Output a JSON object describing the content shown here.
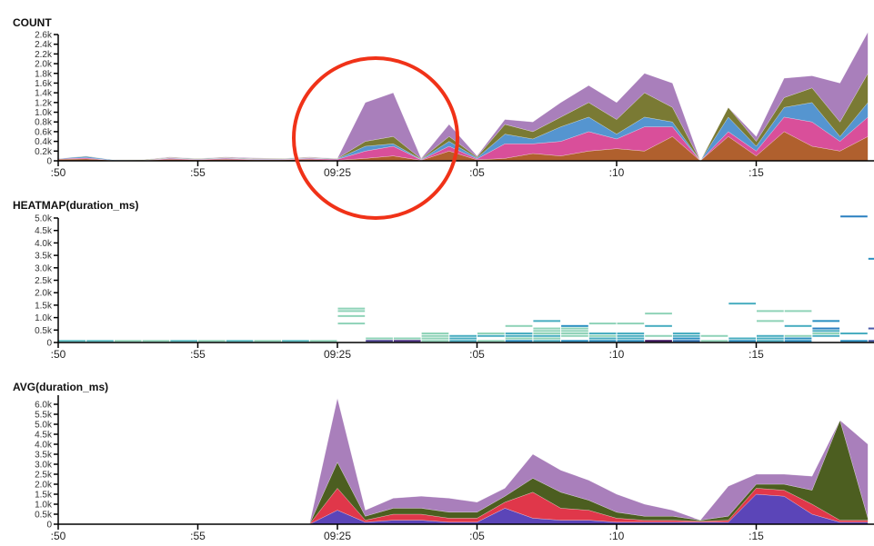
{
  "x_tick_labels": [
    ":50",
    ":55",
    "09:25",
    ":05",
    ":10",
    ":15"
  ],
  "annotation": {
    "shape": "circle",
    "color": "#f03218",
    "around": "COUNT spike near 09:25"
  },
  "chart_data": [
    {
      "type": "area",
      "stacked": true,
      "title": "COUNT",
      "ylim": [
        0,
        2600
      ],
      "y_ticks": [
        "0",
        "0.2k",
        "0.4k",
        "0.6k",
        "0.8k",
        "1.0k",
        "1.2k",
        "1.4k",
        "1.6k",
        "1.8k",
        "2.0k",
        "2.2k",
        "2.4k",
        "2.6k"
      ],
      "series": [
        {
          "color": "#b0602e",
          "values": [
            30,
            40,
            10,
            10,
            30,
            20,
            30,
            20,
            20,
            30,
            10,
            50,
            100,
            10,
            200,
            20,
            50,
            150,
            100,
            200,
            250,
            200,
            500,
            0,
            500,
            100,
            600,
            300,
            200,
            500
          ]
        },
        {
          "color": "#d94f9a",
          "values": [
            10,
            20,
            0,
            0,
            20,
            10,
            20,
            10,
            10,
            20,
            20,
            150,
            200,
            10,
            100,
            20,
            300,
            200,
            300,
            400,
            200,
            500,
            200,
            0,
            100,
            100,
            300,
            500,
            200,
            400
          ]
        },
        {
          "color": "#5595d0",
          "values": [
            10,
            30,
            10,
            0,
            10,
            10,
            10,
            10,
            10,
            10,
            10,
            100,
            50,
            10,
            100,
            20,
            200,
            100,
            300,
            300,
            100,
            200,
            100,
            0,
            300,
            100,
            200,
            400,
            100,
            300
          ]
        },
        {
          "color": "#7a7a34",
          "values": [
            0,
            10,
            0,
            10,
            10,
            10,
            10,
            10,
            10,
            10,
            10,
            100,
            150,
            10,
            100,
            20,
            200,
            150,
            200,
            300,
            300,
            500,
            300,
            0,
            200,
            100,
            200,
            300,
            300,
            600
          ]
        },
        {
          "color": "#a97fbb",
          "values": [
            0,
            0,
            0,
            0,
            10,
            0,
            10,
            10,
            0,
            10,
            0,
            800,
            900,
            10,
            250,
            20,
            100,
            200,
            300,
            350,
            350,
            400,
            500,
            0,
            0,
            100,
            400,
            250,
            800,
            850
          ]
        }
      ]
    },
    {
      "type": "heatmap",
      "title": "HEATMAP(duration_ms)",
      "ylim": [
        0,
        5000
      ],
      "bucket_ms": 100,
      "y_ticks": [
        "0",
        "0.5k",
        "1.0k",
        "1.5k",
        "2.0k",
        "2.5k",
        "3.0k",
        "3.5k",
        "4.0k",
        "4.5k",
        "5.0k"
      ],
      "cells": [
        {
          "t": 0,
          "y": 0,
          "c": "#5bbcc0"
        },
        {
          "t": 1,
          "y": 0,
          "c": "#5bbcc0"
        },
        {
          "t": 2,
          "y": 0,
          "c": "#8fd3b8"
        },
        {
          "t": 3,
          "y": 0,
          "c": "#8fd3b8"
        },
        {
          "t": 4,
          "y": 0,
          "c": "#5bbcc0"
        },
        {
          "t": 5,
          "y": 0,
          "c": "#8fd3b8"
        },
        {
          "t": 6,
          "y": 0,
          "c": "#5bbcc0"
        },
        {
          "t": 7,
          "y": 0,
          "c": "#8fd3b8"
        },
        {
          "t": 8,
          "y": 0,
          "c": "#5bbcc0"
        },
        {
          "t": 9,
          "y": 0,
          "c": "#8fd3b8"
        },
        {
          "t": 10,
          "y": 1300,
          "c": "#8fd3b8"
        },
        {
          "t": 10,
          "y": 1200,
          "c": "#8fd3b8"
        },
        {
          "t": 10,
          "y": 1000,
          "c": "#8fd3b8"
        },
        {
          "t": 10,
          "y": 700,
          "c": "#8fd3b8"
        },
        {
          "t": 11,
          "y": 100,
          "c": "#8fd3b8"
        },
        {
          "t": 11,
          "y": 0,
          "c": "#4a3f8f"
        },
        {
          "t": 12,
          "y": 100,
          "c": "#8fd3b8"
        },
        {
          "t": 12,
          "y": 0,
          "c": "#4a2f80"
        },
        {
          "t": 13,
          "y": 300,
          "c": "#8fd3b8"
        },
        {
          "t": 13,
          "y": 200,
          "c": "#8fd3b8"
        },
        {
          "t": 13,
          "y": 100,
          "c": "#8fd3b8"
        },
        {
          "t": 13,
          "y": 0,
          "c": "#8fd3b8"
        },
        {
          "t": 14,
          "y": 200,
          "c": "#48adc0"
        },
        {
          "t": 14,
          "y": 100,
          "c": "#48adc0"
        },
        {
          "t": 14,
          "y": 0,
          "c": "#48adc0"
        },
        {
          "t": 15,
          "y": 300,
          "c": "#8fd3b8"
        },
        {
          "t": 15,
          "y": 200,
          "c": "#48adc0"
        },
        {
          "t": 15,
          "y": 0,
          "c": "#8fd3b8"
        },
        {
          "t": 16,
          "y": 600,
          "c": "#8fd3b8"
        },
        {
          "t": 16,
          "y": 300,
          "c": "#48adc0"
        },
        {
          "t": 16,
          "y": 200,
          "c": "#48adc0"
        },
        {
          "t": 16,
          "y": 100,
          "c": "#8fd3b8"
        },
        {
          "t": 16,
          "y": 0,
          "c": "#2a8fc0"
        },
        {
          "t": 17,
          "y": 800,
          "c": "#48adc0"
        },
        {
          "t": 17,
          "y": 500,
          "c": "#8fd3b8"
        },
        {
          "t": 17,
          "y": 400,
          "c": "#8fd3b8"
        },
        {
          "t": 17,
          "y": 300,
          "c": "#8fd3b8"
        },
        {
          "t": 17,
          "y": 200,
          "c": "#48adc0"
        },
        {
          "t": 17,
          "y": 100,
          "c": "#8fd3b8"
        },
        {
          "t": 17,
          "y": 0,
          "c": "#48adc0"
        },
        {
          "t": 18,
          "y": 600,
          "c": "#2a8fc0"
        },
        {
          "t": 18,
          "y": 500,
          "c": "#8fd3b8"
        },
        {
          "t": 18,
          "y": 400,
          "c": "#8fd3b8"
        },
        {
          "t": 18,
          "y": 300,
          "c": "#8fd3b8"
        },
        {
          "t": 18,
          "y": 200,
          "c": "#8fd3b8"
        },
        {
          "t": 18,
          "y": 0,
          "c": "#2a8fc0"
        },
        {
          "t": 19,
          "y": 700,
          "c": "#8fd3b8"
        },
        {
          "t": 19,
          "y": 300,
          "c": "#48adc0"
        },
        {
          "t": 19,
          "y": 200,
          "c": "#8fd3b8"
        },
        {
          "t": 19,
          "y": 100,
          "c": "#48adc0"
        },
        {
          "t": 19,
          "y": 0,
          "c": "#2a8fc0"
        },
        {
          "t": 20,
          "y": 700,
          "c": "#8fd3b8"
        },
        {
          "t": 20,
          "y": 300,
          "c": "#48adc0"
        },
        {
          "t": 20,
          "y": 200,
          "c": "#48adc0"
        },
        {
          "t": 20,
          "y": 100,
          "c": "#48adc0"
        },
        {
          "t": 20,
          "y": 0,
          "c": "#2a8fc0"
        },
        {
          "t": 21,
          "y": 1100,
          "c": "#8fd3b8"
        },
        {
          "t": 21,
          "y": 600,
          "c": "#48adc0"
        },
        {
          "t": 21,
          "y": 200,
          "c": "#8fd3b8"
        },
        {
          "t": 21,
          "y": 0,
          "c": "#3a0f5a"
        },
        {
          "t": 22,
          "y": 300,
          "c": "#48adc0"
        },
        {
          "t": 22,
          "y": 200,
          "c": "#48adc0"
        },
        {
          "t": 22,
          "y": 100,
          "c": "#2a8fc0"
        },
        {
          "t": 22,
          "y": 0,
          "c": "#2a6fb0"
        },
        {
          "t": 23,
          "y": 200,
          "c": "#8fd3b8"
        },
        {
          "t": 23,
          "y": 0,
          "c": "#8fd3b8"
        },
        {
          "t": 24,
          "y": 1500,
          "c": "#48adc0"
        },
        {
          "t": 24,
          "y": 100,
          "c": "#48adc0"
        },
        {
          "t": 24,
          "y": 0,
          "c": "#2a8fc0"
        },
        {
          "t": 25,
          "y": 1200,
          "c": "#8fd3b8"
        },
        {
          "t": 25,
          "y": 800,
          "c": "#8fd3b8"
        },
        {
          "t": 25,
          "y": 200,
          "c": "#48adc0"
        },
        {
          "t": 25,
          "y": 100,
          "c": "#48adc0"
        },
        {
          "t": 25,
          "y": 0,
          "c": "#48adc0"
        },
        {
          "t": 26,
          "y": 1200,
          "c": "#8fd3b8"
        },
        {
          "t": 26,
          "y": 600,
          "c": "#48adc0"
        },
        {
          "t": 26,
          "y": 200,
          "c": "#8fd3b8"
        },
        {
          "t": 26,
          "y": 100,
          "c": "#2a8fc0"
        },
        {
          "t": 26,
          "y": 0,
          "c": "#2a8fc0"
        },
        {
          "t": 27,
          "y": 800,
          "c": "#2a8fc0"
        },
        {
          "t": 27,
          "y": 500,
          "c": "#2a7fc0"
        },
        {
          "t": 27,
          "y": 400,
          "c": "#48adc0"
        },
        {
          "t": 27,
          "y": 300,
          "c": "#8fd3b8"
        },
        {
          "t": 27,
          "y": 200,
          "c": "#48adc0"
        },
        {
          "t": 28,
          "y": 5000,
          "c": "#2a7fc0"
        },
        {
          "t": 28,
          "y": 300,
          "c": "#48adc0"
        },
        {
          "t": 28,
          "y": 0,
          "c": "#2a8fc0"
        },
        {
          "t": 29,
          "y": 3300,
          "c": "#2a8fc0"
        },
        {
          "t": 29,
          "y": 500,
          "c": "#4a5aa8"
        },
        {
          "t": 29,
          "y": 0,
          "c": "#4a5aa8"
        }
      ]
    },
    {
      "type": "area",
      "stacked": true,
      "title": "AVG(duration_ms)",
      "ylim": [
        0,
        6000
      ],
      "y_ticks": [
        "0",
        "0.5k",
        "1.0k",
        "1.5k",
        "2.0k",
        "2.5k",
        "3.0k",
        "3.5k",
        "4.0k",
        "4.5k",
        "5.0k",
        "5.5k",
        "6.0k"
      ],
      "series": [
        {
          "color": "#5b45b8",
          "values": [
            0,
            0,
            0,
            0,
            0,
            0,
            0,
            0,
            0,
            0,
            700,
            100,
            200,
            200,
            100,
            100,
            800,
            300,
            200,
            200,
            100,
            100,
            100,
            100,
            100,
            1500,
            1400,
            500,
            100,
            100
          ]
        },
        {
          "color": "#e0374a",
          "values": [
            0,
            0,
            0,
            0,
            0,
            0,
            0,
            0,
            0,
            0,
            1100,
            100,
            300,
            300,
            200,
            200,
            300,
            1300,
            600,
            500,
            200,
            100,
            100,
            50,
            100,
            300,
            300,
            500,
            100,
            100
          ]
        },
        {
          "color": "#4c5e20",
          "values": [
            0,
            0,
            0,
            0,
            0,
            0,
            0,
            0,
            0,
            0,
            1300,
            200,
            300,
            300,
            300,
            300,
            300,
            700,
            800,
            500,
            300,
            200,
            200,
            50,
            200,
            200,
            300,
            700,
            5000,
            100
          ]
        },
        {
          "color": "#a97fbb",
          "values": [
            0,
            0,
            0,
            0,
            0,
            0,
            0,
            0,
            0,
            0,
            3200,
            300,
            500,
            600,
            700,
            500,
            400,
            1200,
            1100,
            1000,
            900,
            600,
            300,
            0,
            1500,
            500,
            500,
            700,
            0,
            3700
          ]
        }
      ]
    }
  ]
}
